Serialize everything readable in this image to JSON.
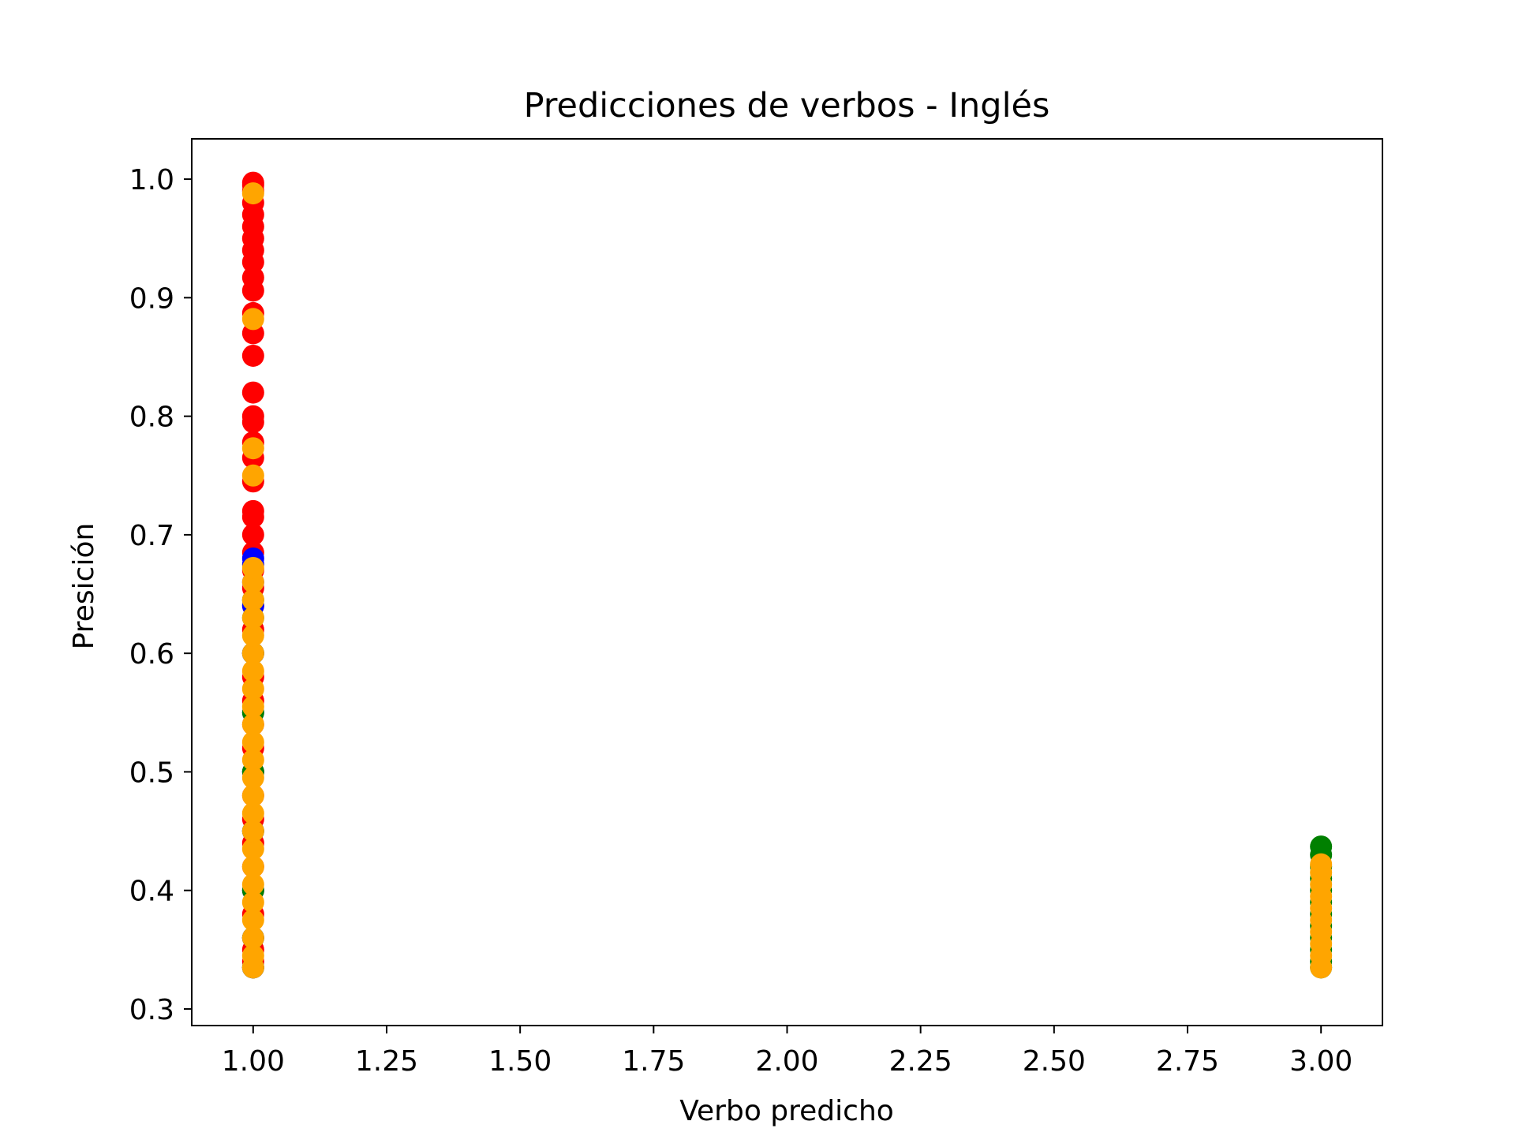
{
  "chart_data": {
    "type": "scatter",
    "title": "Predicciones de verbos - Inglés",
    "xlabel": "Verbo predicho",
    "ylabel": "Presición",
    "xlim": [
      0.885,
      3.115
    ],
    "ylim": [
      0.286,
      1.034
    ],
    "xticks": [
      1.0,
      1.25,
      1.5,
      1.75,
      2.0,
      2.25,
      2.5,
      2.75,
      3.0
    ],
    "xtick_labels": [
      "1.00",
      "1.25",
      "1.50",
      "1.75",
      "2.00",
      "2.25",
      "2.50",
      "2.75",
      "3.00"
    ],
    "yticks": [
      0.3,
      0.4,
      0.5,
      0.6,
      0.7,
      0.8,
      0.9,
      1.0
    ],
    "ytick_labels": [
      "0.3",
      "0.4",
      "0.5",
      "0.6",
      "0.7",
      "0.8",
      "0.9",
      "1.0"
    ],
    "grid": false,
    "legend": "none",
    "series": [
      {
        "color": "#ff0000",
        "points": [
          [
            1,
            0.335
          ],
          [
            1,
            0.34
          ],
          [
            1,
            0.35
          ],
          [
            1,
            0.36
          ],
          [
            1,
            0.38
          ],
          [
            1,
            0.4
          ],
          [
            1,
            0.42
          ],
          [
            1,
            0.44
          ],
          [
            1,
            0.46
          ],
          [
            1,
            0.48
          ],
          [
            1,
            0.5
          ],
          [
            1,
            0.52
          ],
          [
            1,
            0.54
          ],
          [
            1,
            0.56
          ],
          [
            1,
            0.58
          ],
          [
            1,
            0.6
          ],
          [
            1,
            0.62
          ],
          [
            1,
            0.64
          ],
          [
            1,
            0.655
          ],
          [
            1,
            0.67
          ],
          [
            1,
            0.685
          ],
          [
            1,
            0.7
          ],
          [
            1,
            0.715
          ],
          [
            1,
            0.72
          ],
          [
            1,
            0.745
          ],
          [
            1,
            0.765
          ],
          [
            1,
            0.778
          ],
          [
            1,
            0.795
          ],
          [
            1,
            0.8
          ],
          [
            1,
            0.82
          ],
          [
            1,
            0.851
          ],
          [
            1,
            0.87
          ],
          [
            1,
            0.887
          ],
          [
            1,
            0.906
          ],
          [
            1,
            0.917
          ],
          [
            1,
            0.93
          ],
          [
            1,
            0.94
          ],
          [
            1,
            0.95
          ],
          [
            1,
            0.96
          ],
          [
            1,
            0.97
          ],
          [
            1,
            0.98
          ],
          [
            1,
            0.99
          ],
          [
            1,
            0.995
          ],
          [
            1,
            0.997
          ]
        ]
      },
      {
        "color": "#0000ff",
        "points": [
          [
            1,
            0.335
          ],
          [
            1,
            0.36
          ],
          [
            1,
            0.4
          ],
          [
            1,
            0.45
          ],
          [
            1,
            0.5
          ],
          [
            1,
            0.55
          ],
          [
            1,
            0.6
          ],
          [
            1,
            0.64
          ],
          [
            1,
            0.66
          ],
          [
            1,
            0.675
          ],
          [
            1,
            0.68
          ]
        ]
      },
      {
        "color": "#008000",
        "points": [
          [
            1,
            0.335
          ],
          [
            1,
            0.36
          ],
          [
            1,
            0.4
          ],
          [
            1,
            0.45
          ],
          [
            1,
            0.5
          ],
          [
            1,
            0.55
          ],
          [
            1,
            0.6
          ],
          [
            1,
            0.63
          ],
          [
            1,
            0.645
          ],
          [
            3,
            0.335
          ],
          [
            3,
            0.34
          ],
          [
            3,
            0.35
          ],
          [
            3,
            0.36
          ],
          [
            3,
            0.37
          ],
          [
            3,
            0.38
          ],
          [
            3,
            0.39
          ],
          [
            3,
            0.4
          ],
          [
            3,
            0.41
          ],
          [
            3,
            0.42
          ],
          [
            3,
            0.43
          ],
          [
            3,
            0.437
          ]
        ]
      },
      {
        "color": "#ffa500",
        "points": [
          [
            1,
            0.335
          ],
          [
            1,
            0.345
          ],
          [
            1,
            0.36
          ],
          [
            1,
            0.375
          ],
          [
            1,
            0.39
          ],
          [
            1,
            0.405
          ],
          [
            1,
            0.42
          ],
          [
            1,
            0.435
          ],
          [
            1,
            0.45
          ],
          [
            1,
            0.465
          ],
          [
            1,
            0.48
          ],
          [
            1,
            0.495
          ],
          [
            1,
            0.51
          ],
          [
            1,
            0.525
          ],
          [
            1,
            0.54
          ],
          [
            1,
            0.555
          ],
          [
            1,
            0.57
          ],
          [
            1,
            0.585
          ],
          [
            1,
            0.6
          ],
          [
            1,
            0.615
          ],
          [
            1,
            0.63
          ],
          [
            1,
            0.645
          ],
          [
            1,
            0.66
          ],
          [
            1,
            0.672
          ],
          [
            1,
            0.75
          ],
          [
            1,
            0.773
          ],
          [
            1,
            0.882
          ],
          [
            1,
            0.988
          ],
          [
            3,
            0.335
          ],
          [
            3,
            0.345
          ],
          [
            3,
            0.355
          ],
          [
            3,
            0.365
          ],
          [
            3,
            0.375
          ],
          [
            3,
            0.385
          ],
          [
            3,
            0.395
          ],
          [
            3,
            0.405
          ],
          [
            3,
            0.415
          ],
          [
            3,
            0.422
          ]
        ]
      }
    ]
  }
}
